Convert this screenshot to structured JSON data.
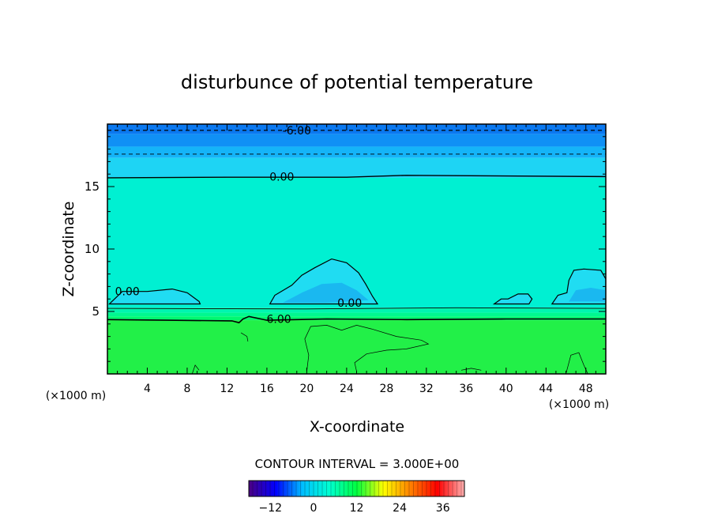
{
  "chart_data": {
    "type": "contour",
    "title": "disturbunce of potential temperature",
    "xlabel": "X-coordinate",
    "ylabel": "Z-coordinate",
    "x_unit_left": "(×1000 m)",
    "x_unit_right": "(×1000 m)",
    "xlim": [
      0,
      50
    ],
    "ylim": [
      0,
      20
    ],
    "x_ticks": [
      4,
      8,
      12,
      16,
      20,
      24,
      28,
      32,
      36,
      40,
      44,
      48
    ],
    "y_ticks": [
      5,
      10,
      15
    ],
    "contour_interval_label": "CONTOUR INTERVAL = 3.000E+00",
    "contour_interval": 3.0,
    "contour_labels": [
      {
        "text": "-6.00",
        "x": 19,
        "y": 19.5
      },
      {
        "text": "0.00",
        "x": 17.5,
        "y": 15.8
      },
      {
        "text": "0.00",
        "x": 2,
        "y": 6.6
      },
      {
        "text": "0.00",
        "x": 24.3,
        "y": 5.7
      },
      {
        "text": "6.00",
        "x": 17.2,
        "y": 4.4
      }
    ],
    "colorbar": {
      "range": [
        -18,
        42
      ],
      "ticks": [
        -12,
        0,
        12,
        24,
        36
      ],
      "colors": [
        "#4b0082",
        "#0000ff",
        "#00bfff",
        "#00ffd0",
        "#00ff40",
        "#ffff00",
        "#ff8000",
        "#ff0000",
        "#ffb0b0"
      ]
    },
    "bands": [
      {
        "from": 19.2,
        "to": 20.0,
        "color": "#0a78f0"
      },
      {
        "from": 18.2,
        "to": 19.2,
        "color": "#1090f5"
      },
      {
        "from": 17.3,
        "to": 18.2,
        "color": "#15b4f8"
      },
      {
        "from": 15.7,
        "to": 17.3,
        "color": "#1ed4f4"
      },
      {
        "from": 5.3,
        "to": 15.7,
        "color": "#00f0d2"
      },
      {
        "from": 4.9,
        "to": 5.3,
        "color": "#00f5b0"
      },
      {
        "from": 4.6,
        "to": 4.9,
        "color": "#00f890"
      },
      {
        "from": 4.3,
        "to": 4.6,
        "color": "#00f870"
      },
      {
        "from": 0.0,
        "to": 4.3,
        "color": "#22f048"
      }
    ]
  }
}
